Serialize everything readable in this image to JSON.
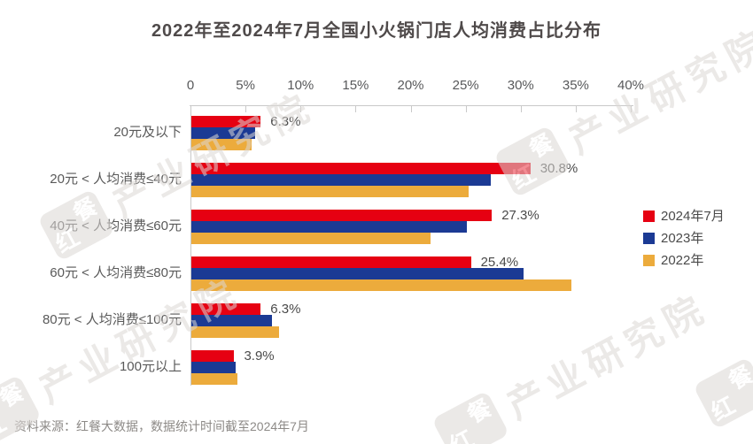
{
  "title": "2022年至2024年7月全国小火锅门店人均消费占比分布",
  "chart_data": {
    "type": "bar",
    "orientation": "horizontal",
    "title": "2022年至2024年7月全国小火锅门店人均消费占比分布",
    "categories": [
      "20元及以下",
      "20元 < 人均消费≤40元",
      "40元 < 人均消费≤60元",
      "60元 < 人均消费≤80元",
      "80元 < 人均消费≤100元",
      "100元以上"
    ],
    "series": [
      {
        "name": "2024年7月",
        "color": "#e60012",
        "values": [
          6.3,
          30.8,
          27.3,
          25.4,
          6.3,
          3.9
        ],
        "data_labels": [
          "6.3%",
          "30.8%",
          "27.3%",
          "25.4%",
          "6.3%",
          "3.9%"
        ]
      },
      {
        "name": "2023年",
        "color": "#1b3a94",
        "values": [
          5.8,
          27.2,
          25.0,
          30.2,
          7.3,
          4.0
        ]
      },
      {
        "name": "2022年",
        "color": "#ecab3c",
        "values": [
          5.5,
          25.2,
          21.7,
          34.5,
          8.0,
          4.2
        ]
      }
    ],
    "xlabel": "",
    "ylabel": "",
    "x_axis": {
      "min": 0,
      "max": 40,
      "position": "top",
      "tick_values": [
        0,
        5,
        10,
        15,
        20,
        25,
        30,
        35,
        40
      ],
      "tick_labels": [
        "0",
        "5%",
        "10%",
        "15%",
        "20%",
        "25%",
        "30%",
        "35%",
        "40%"
      ]
    },
    "grid": false,
    "legend_position": "right",
    "legend": [
      "2024年7月",
      "2023年",
      "2022年"
    ]
  },
  "footer": {
    "source": "资料来源：红餐大数据，数据统计时间截至2024年7月"
  },
  "watermark": {
    "logo_chars": [
      "红",
      "餐"
    ],
    "text": "产业研究院"
  },
  "colors": {
    "series_red": "#e60012",
    "series_blue": "#1b3a94",
    "series_yellow": "#ecab3c",
    "title_text": "#4f4a4a",
    "axis_text": "#595959",
    "source_text": "#8d8a87",
    "axis_line": "#c9c9c9",
    "watermark": "#dcd8d5"
  }
}
